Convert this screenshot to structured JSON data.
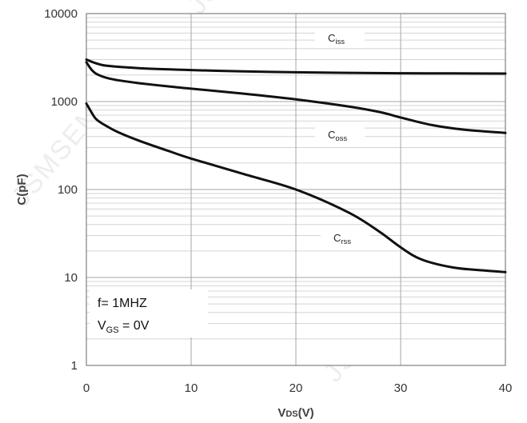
{
  "chart_data": {
    "type": "line",
    "xlabel": {
      "main": "V",
      "sub": "DS",
      "suffix": "(V)"
    },
    "ylabel": "C(pF)",
    "x_scale": "linear",
    "y_scale": "log",
    "xlim": [
      0,
      40
    ],
    "ylim": [
      1,
      10000
    ],
    "x_ticks": [
      0,
      10,
      20,
      30,
      40
    ],
    "y_ticks": [
      1,
      10,
      100,
      1000,
      10000
    ],
    "x_tick_labels": [
      "0",
      "10",
      "20",
      "30",
      "40"
    ],
    "y_tick_labels": [
      "1",
      "10",
      "100",
      "1000",
      "10000"
    ],
    "grid": true,
    "series": [
      {
        "name": "Ciss",
        "label_main": "C",
        "label_sub": "iss",
        "x": [
          0,
          1,
          2,
          5,
          10,
          15,
          20,
          25,
          30,
          35,
          40
        ],
        "y": [
          3000,
          2700,
          2550,
          2400,
          2280,
          2200,
          2150,
          2120,
          2100,
          2090,
          2080
        ]
      },
      {
        "name": "Coss",
        "label_main": "C",
        "label_sub": "oss",
        "x": [
          0,
          0.5,
          1,
          2,
          3,
          5,
          8,
          10,
          15,
          20,
          25,
          28,
          30,
          33,
          36,
          40
        ],
        "y": [
          2800,
          2300,
          2050,
          1850,
          1750,
          1620,
          1480,
          1400,
          1230,
          1060,
          880,
          760,
          660,
          540,
          480,
          440
        ]
      },
      {
        "name": "Crss",
        "label_main": "C",
        "label_sub": "rss",
        "x": [
          0,
          0.5,
          1,
          2,
          3,
          5,
          8,
          10,
          15,
          20,
          25,
          28,
          30,
          32,
          35,
          38,
          40
        ],
        "y": [
          950,
          750,
          620,
          520,
          450,
          360,
          270,
          225,
          150,
          100,
          55,
          33,
          22,
          16,
          13,
          12,
          11.5
        ]
      }
    ],
    "annotations": {
      "freq": "f= 1MHZ",
      "vgs": {
        "main": "V",
        "sub": "GS",
        "suffix": " = 0V"
      }
    },
    "watermark": "JSMSEMI",
    "colors": {
      "line": "#111111",
      "grid_major": "#a6a6a6",
      "grid_minor": "#d4d4d4",
      "axis": "#808080"
    }
  }
}
